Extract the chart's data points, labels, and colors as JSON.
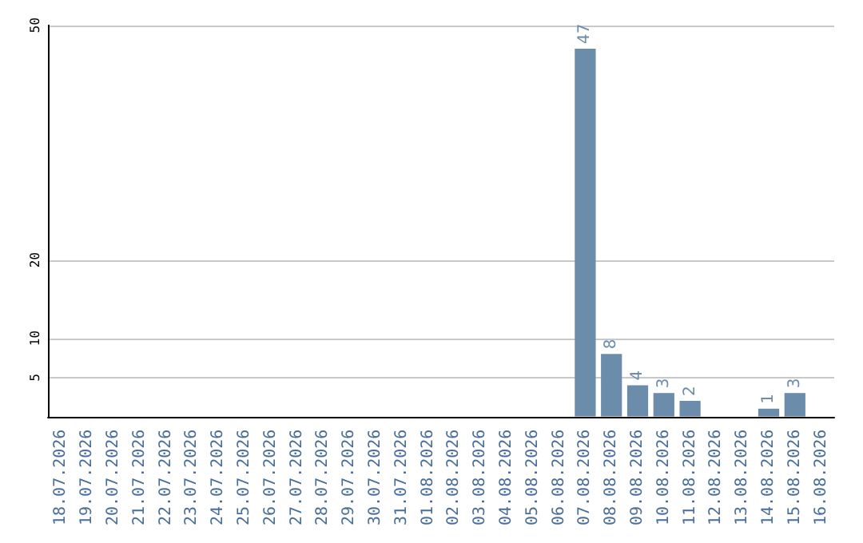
{
  "chart_data": {
    "type": "bar",
    "categories": [
      "18.07.2026",
      "19.07.2026",
      "20.07.2026",
      "21.07.2026",
      "22.07.2026",
      "23.07.2026",
      "24.07.2026",
      "25.07.2026",
      "26.07.2026",
      "27.07.2026",
      "28.07.2026",
      "29.07.2026",
      "30.07.2026",
      "31.07.2026",
      "01.08.2026",
      "02.08.2026",
      "03.08.2026",
      "04.08.2026",
      "05.08.2026",
      "06.08.2026",
      "07.08.2026",
      "08.08.2026",
      "09.08.2026",
      "10.08.2026",
      "11.08.2026",
      "12.08.2026",
      "13.08.2026",
      "14.08.2026",
      "15.08.2026",
      "16.08.2026"
    ],
    "values": [
      null,
      null,
      null,
      null,
      null,
      null,
      null,
      null,
      null,
      null,
      null,
      null,
      null,
      null,
      null,
      null,
      null,
      null,
      null,
      null,
      47,
      8,
      4,
      3,
      2,
      null,
      null,
      1,
      3,
      null
    ],
    "color": "#6b8cab",
    "ylim": [
      0,
      50
    ],
    "yticks": [
      5,
      10,
      20,
      50
    ],
    "grid": "y",
    "data_labels": true
  }
}
